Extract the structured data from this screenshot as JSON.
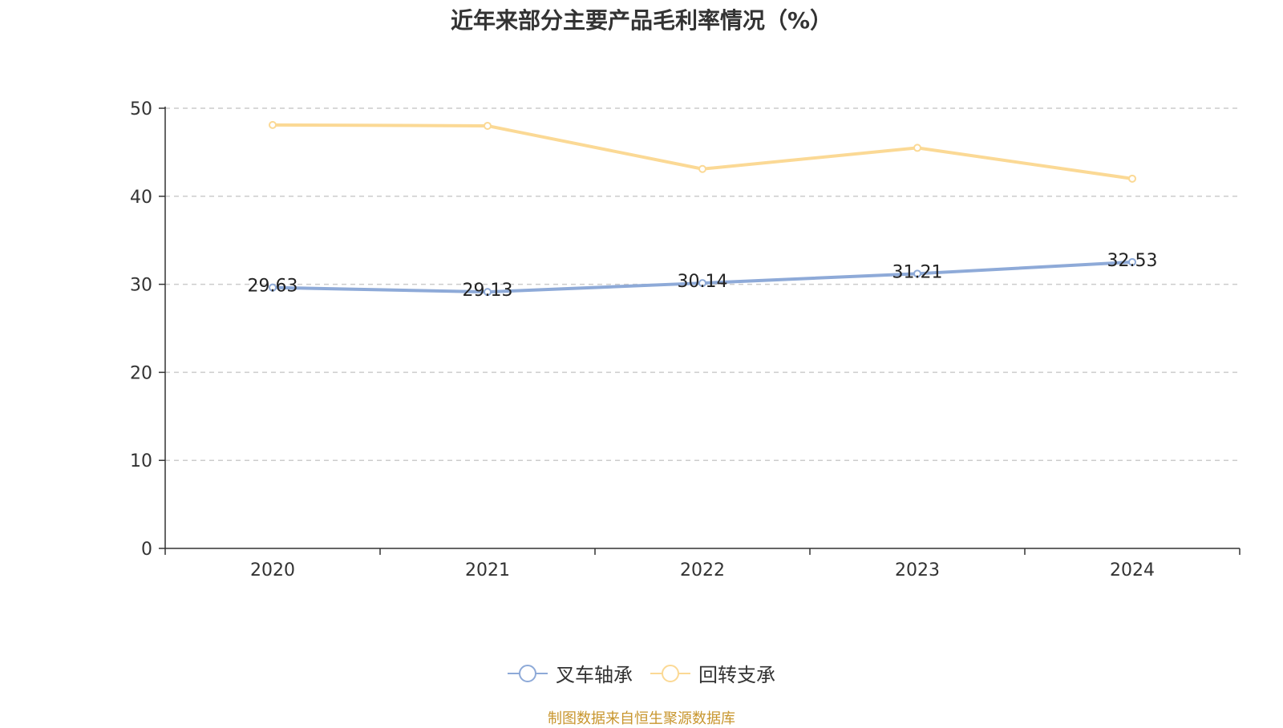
{
  "chart_data": {
    "type": "line",
    "title": "近年来部分主要产品毛利率情况（%）",
    "categories": [
      "2020",
      "2021",
      "2022",
      "2023",
      "2024"
    ],
    "ylim": [
      0,
      50
    ],
    "yticks": [
      0,
      10,
      20,
      30,
      40,
      50
    ],
    "grid": true,
    "legend_position": "bottom",
    "series": [
      {
        "name": "叉车轴承",
        "color": "#8eaad8",
        "values": [
          29.63,
          29.13,
          30.14,
          31.21,
          32.53
        ],
        "show_labels": true
      },
      {
        "name": "回转支承",
        "color": "#fbd995",
        "values": [
          48.1,
          48.0,
          43.1,
          45.5,
          42.0
        ],
        "show_labels": false
      }
    ],
    "source": "制图数据来自恒生聚源数据库"
  }
}
